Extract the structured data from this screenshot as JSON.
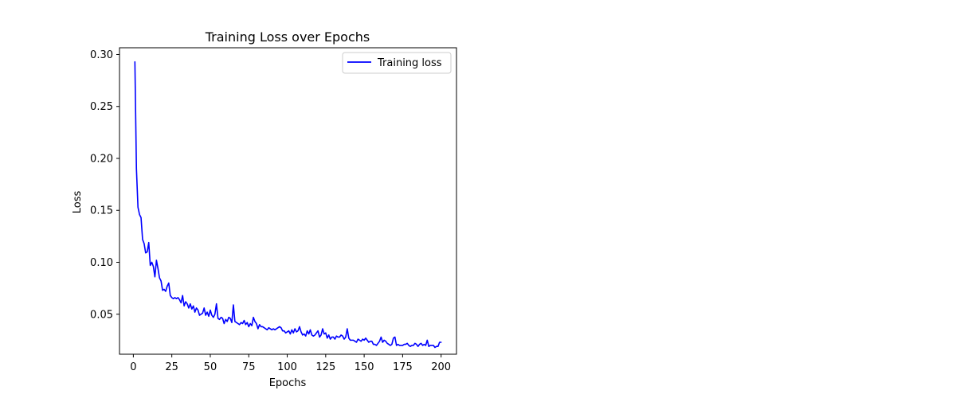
{
  "chart_data": {
    "type": "line",
    "title": "Training Loss over Epochs",
    "xlabel": "Epochs",
    "ylabel": "Loss",
    "xlim": [
      -9,
      210
    ],
    "ylim": [
      0.0115,
      0.3065
    ],
    "xticks": [
      0,
      25,
      50,
      75,
      100,
      125,
      150,
      175,
      200
    ],
    "yticks": [
      0.05,
      0.1,
      0.15,
      0.2,
      0.25,
      0.3
    ],
    "ytick_labels": [
      "0.05",
      "0.10",
      "0.15",
      "0.20",
      "0.25",
      "0.30"
    ],
    "grid": false,
    "legend_position": "top-right",
    "series": [
      {
        "name": "Training loss",
        "color": "#0000ff",
        "x_start": 1,
        "x_step": 1,
        "values": [
          0.293,
          0.19,
          0.153,
          0.146,
          0.143,
          0.122,
          0.118,
          0.109,
          0.11,
          0.119,
          0.097,
          0.1,
          0.096,
          0.086,
          0.102,
          0.094,
          0.085,
          0.082,
          0.073,
          0.074,
          0.072,
          0.077,
          0.08,
          0.068,
          0.066,
          0.065,
          0.066,
          0.065,
          0.066,
          0.064,
          0.061,
          0.068,
          0.058,
          0.062,
          0.06,
          0.056,
          0.06,
          0.055,
          0.058,
          0.052,
          0.056,
          0.054,
          0.049,
          0.05,
          0.051,
          0.056,
          0.049,
          0.052,
          0.048,
          0.054,
          0.049,
          0.047,
          0.05,
          0.06,
          0.046,
          0.045,
          0.047,
          0.046,
          0.041,
          0.045,
          0.043,
          0.047,
          0.046,
          0.042,
          0.059,
          0.043,
          0.042,
          0.041,
          0.04,
          0.042,
          0.041,
          0.044,
          0.04,
          0.042,
          0.038,
          0.041,
          0.039,
          0.047,
          0.043,
          0.041,
          0.036,
          0.04,
          0.038,
          0.038,
          0.037,
          0.036,
          0.035,
          0.037,
          0.036,
          0.035,
          0.036,
          0.035,
          0.036,
          0.037,
          0.038,
          0.037,
          0.034,
          0.034,
          0.032,
          0.033,
          0.034,
          0.031,
          0.035,
          0.032,
          0.036,
          0.033,
          0.034,
          0.038,
          0.033,
          0.03,
          0.031,
          0.029,
          0.034,
          0.031,
          0.035,
          0.03,
          0.029,
          0.03,
          0.032,
          0.034,
          0.028,
          0.03,
          0.036,
          0.031,
          0.032,
          0.027,
          0.03,
          0.026,
          0.028,
          0.028,
          0.026,
          0.029,
          0.028,
          0.028,
          0.03,
          0.029,
          0.026,
          0.028,
          0.036,
          0.027,
          0.025,
          0.025,
          0.025,
          0.024,
          0.023,
          0.026,
          0.025,
          0.024,
          0.026,
          0.025,
          0.027,
          0.025,
          0.023,
          0.024,
          0.024,
          0.021,
          0.021,
          0.02,
          0.022,
          0.024,
          0.028,
          0.023,
          0.025,
          0.024,
          0.022,
          0.021,
          0.02,
          0.021,
          0.027,
          0.028,
          0.02,
          0.021,
          0.02,
          0.02,
          0.02,
          0.021,
          0.021,
          0.022,
          0.02,
          0.019,
          0.02,
          0.02,
          0.022,
          0.021,
          0.019,
          0.021,
          0.022,
          0.02,
          0.021,
          0.02,
          0.025,
          0.019,
          0.02,
          0.02,
          0.02,
          0.018,
          0.019,
          0.019,
          0.023,
          0.023
        ]
      }
    ]
  }
}
